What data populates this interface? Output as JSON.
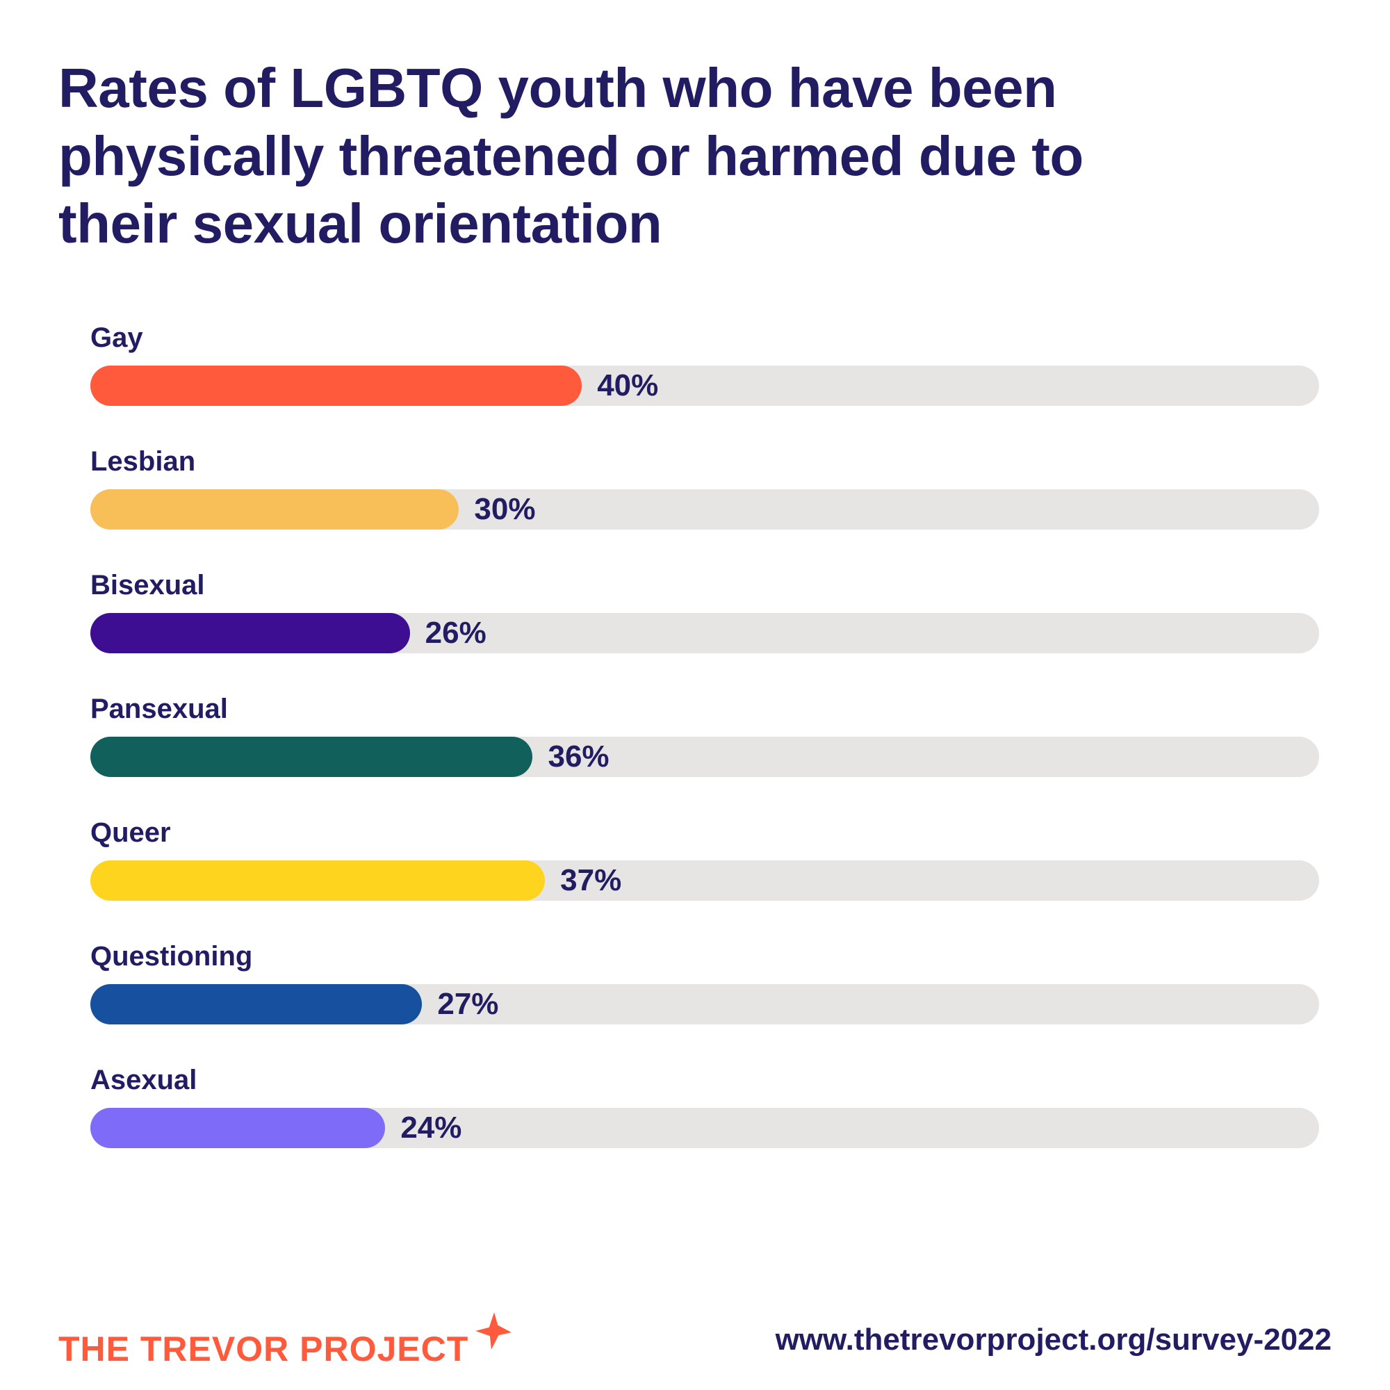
{
  "header": {
    "title": "Rates of LGBTQ youth who have been physically threatened or harmed due to their sexual orientation"
  },
  "chart_data": {
    "type": "bar",
    "orientation": "horizontal",
    "title": "Rates of LGBTQ youth who have been physically threatened or harmed due to their sexual orientation",
    "categories": [
      "Gay",
      "Lesbian",
      "Bisexual",
      "Pansexual",
      "Queer",
      "Questioning",
      "Asexual"
    ],
    "values": [
      40,
      30,
      26,
      36,
      37,
      27,
      24
    ],
    "value_labels": [
      "40%",
      "30%",
      "26%",
      "36%",
      "37%",
      "27%",
      "24%"
    ],
    "bar_colors": [
      "#ff5a3c",
      "#f8be58",
      "#3d0e91",
      "#11605b",
      "#ffd41e",
      "#16509f",
      "#7e6bf7"
    ],
    "track_color": "#e6e5e4",
    "xlim": [
      0,
      100
    ],
    "xlabel": "",
    "ylabel": "",
    "grid": false,
    "legend": "none"
  },
  "footer": {
    "logo_text": "THE TREVOR PROJECT",
    "url": "www.thetrevorproject.org/survey-2022"
  },
  "colors": {
    "heading_navy": "#221c63",
    "brand_orange": "#ff5a3c",
    "track_gray": "#e6e5e4"
  }
}
